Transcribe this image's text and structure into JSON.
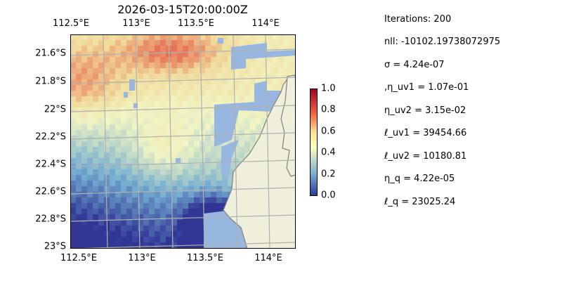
{
  "title": "2026-03-15T20:00:00Z",
  "axes": {
    "lon_ticks_top": [
      "112.5°E",
      "113°E",
      "113.5°E",
      "114°E"
    ],
    "lon_ticks_bottom": [
      "112.5°E",
      "113°E",
      "113.5°E",
      "114°E"
    ],
    "lat_ticks": [
      "21.6°S",
      "21.8°S",
      "22°S",
      "22.2°S",
      "22.4°S",
      "22.6°S",
      "22.8°S",
      "23°S"
    ]
  },
  "colorbar": {
    "colormap": "RdYlBu_r",
    "ticks": [
      "1.0",
      "0.8",
      "0.6",
      "0.4",
      "0.2",
      "0.0"
    ],
    "range": [
      0,
      1
    ]
  },
  "colors": {
    "sea": "#97b6e0",
    "land": "#efefdb",
    "grid": "#b0b0b0"
  },
  "info": [
    "Iterations: 200",
    "nll: -10102.19738072975",
    "σ = 4.24e-07",
    ",η_uv1 = 1.07e-01",
    "η_uv2 = 3.15e-02",
    "ℓ_uv1 = 39454.66",
    "ℓ_uv2 = 10180.81",
    "η_q = 4.22e-05",
    "ℓ_q = 23025.24"
  ]
}
